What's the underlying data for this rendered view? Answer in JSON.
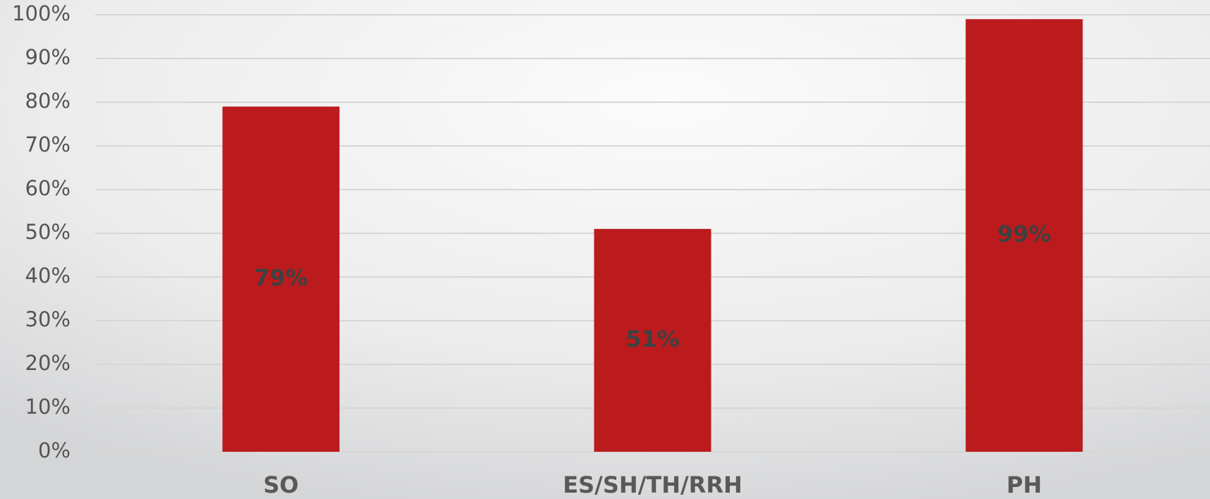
{
  "chart_data": {
    "type": "bar",
    "categories": [
      "SO",
      "ES/SH/TH/RRH",
      "PH"
    ],
    "values": [
      79,
      51,
      99
    ],
    "value_labels": [
      "79%",
      "51%",
      "99%"
    ],
    "color": "#bb1b1d",
    "ylim": [
      0,
      100
    ],
    "yticks": [
      {
        "value": 0,
        "label": "0%"
      },
      {
        "value": 10,
        "label": "10%"
      },
      {
        "value": 20,
        "label": "20%"
      },
      {
        "value": 30,
        "label": "30%"
      },
      {
        "value": 40,
        "label": "40%"
      },
      {
        "value": 50,
        "label": "50%"
      },
      {
        "value": 60,
        "label": "60%"
      },
      {
        "value": 70,
        "label": "70%"
      },
      {
        "value": 80,
        "label": "80%"
      },
      {
        "value": 90,
        "label": "90%"
      },
      {
        "value": 100,
        "label": "100%"
      }
    ],
    "grid": true
  }
}
